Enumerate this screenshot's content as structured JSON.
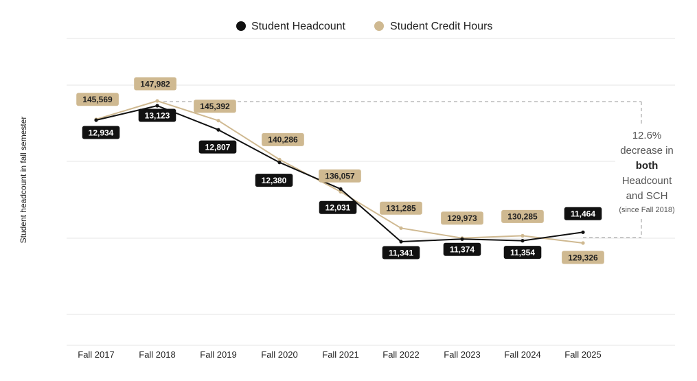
{
  "chart_data": {
    "type": "line",
    "title": "",
    "ylabel": "Student headcount in fall semester",
    "xlabel": "",
    "categories": [
      "Fall 2017",
      "Fall 2018",
      "Fall 2019",
      "Fall 2020",
      "Fall 2021",
      "Fall 2022",
      "Fall 2023",
      "Fall 2024",
      "Fall 2025"
    ],
    "legend_position": "top-center",
    "grid": "horizontal",
    "series": [
      {
        "name": "Student Headcount",
        "color": "#111111",
        "label_text_color": "#ffffff",
        "values": [
          12934,
          13123,
          12807,
          12380,
          12031,
          11341,
          11374,
          11354,
          11464
        ],
        "labels": [
          "12,934",
          "13,123",
          "12,807",
          "12,380",
          "12,031",
          "11,341",
          "11,374",
          "11,354",
          "11,464"
        ]
      },
      {
        "name": "Student Credit Hours",
        "color": "#CFB991",
        "label_text_color": "#222222",
        "values": [
          145569,
          147982,
          145392,
          140286,
          136057,
          131285,
          129973,
          130285,
          129326
        ],
        "labels": [
          "145,569",
          "147,982",
          "145,392",
          "140,286",
          "136,057",
          "131,285",
          "129,973",
          "130,285",
          "129,326"
        ]
      }
    ],
    "annotation": {
      "line1": "12.6%",
      "line2": "decrease in",
      "line3_bold": "both",
      "line4": "Headcount",
      "line5": "and SCH",
      "line6": "(since Fall 2018)"
    }
  }
}
